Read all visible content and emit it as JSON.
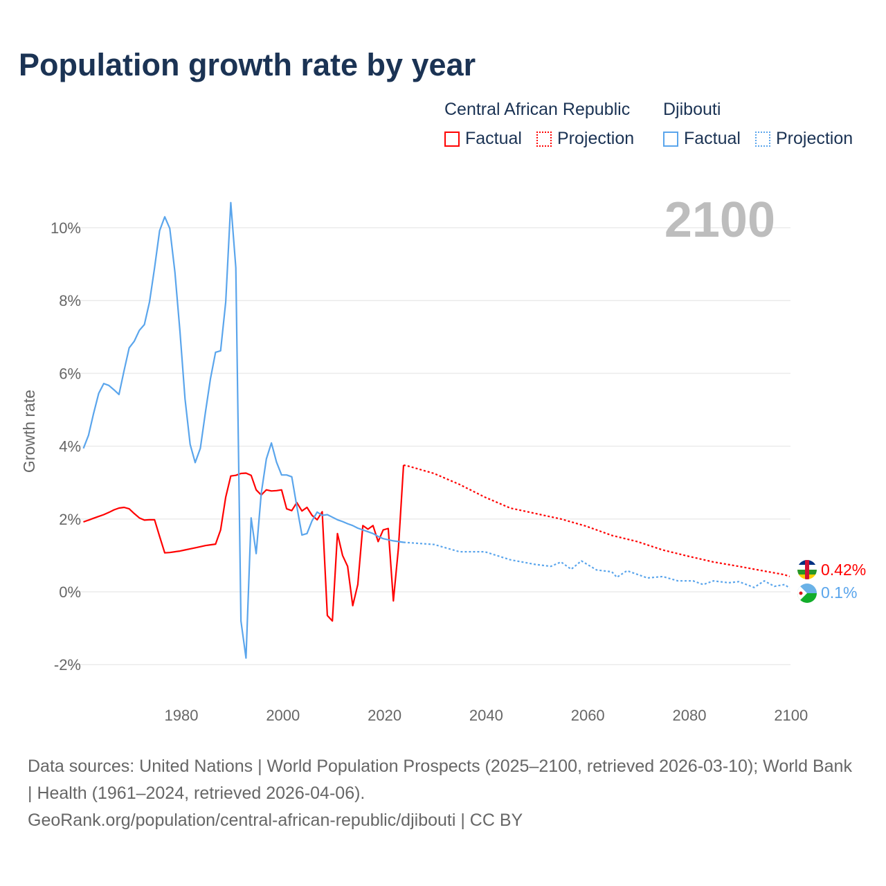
{
  "title": "Population growth rate by year",
  "legend": {
    "groups": [
      {
        "name": "Central African Republic",
        "factual": "Factual",
        "projection": "Projection",
        "color": "#ff0000"
      },
      {
        "name": "Djibouti",
        "factual": "Factual",
        "projection": "Projection",
        "color": "#5aa5ec"
      }
    ]
  },
  "year_watermark": "2100",
  "end_labels": {
    "car": "0.42%",
    "djibouti": "0.1%"
  },
  "footer": {
    "line1": "Data sources: United Nations | World Population Prospects (2025–2100, retrieved 2026-03-10); World Bank | Health (1961–2024, retrieved 2026-04-06).",
    "line2": "GeoRank.org/population/central-african-republic/djibouti | CC BY"
  },
  "chart_data": {
    "type": "line",
    "title": "Population growth rate by year",
    "xlabel": "",
    "ylabel": "Growth rate",
    "xlim": [
      1961,
      2100
    ],
    "ylim": [
      -2.8,
      11
    ],
    "x_ticks": [
      1980,
      2000,
      2020,
      2040,
      2060,
      2080,
      2100
    ],
    "x_tick_labels": [
      "1980",
      "2000",
      "2020",
      "2040",
      "2060",
      "2080",
      "2100"
    ],
    "y_ticks": [
      -2,
      0,
      2,
      4,
      6,
      8,
      10
    ],
    "y_tick_labels": [
      "-2%",
      "0%",
      "2%",
      "4%",
      "6%",
      "8%",
      "10%"
    ],
    "grid": true,
    "legend_position": "top-right",
    "series": [
      {
        "name": "Central African Republic – Factual",
        "color": "#ff0000",
        "style": "solid",
        "start_year": 1961,
        "values": [
          1.92,
          1.97,
          2.02,
          2.07,
          2.12,
          2.18,
          2.25,
          2.3,
          2.32,
          2.28,
          2.15,
          2.03,
          1.97,
          1.98,
          1.98,
          1.52,
          1.07,
          1.08,
          1.1,
          1.12,
          1.15,
          1.18,
          1.21,
          1.24,
          1.27,
          1.29,
          1.31,
          1.7,
          2.6,
          3.18,
          3.2,
          3.25,
          3.26,
          3.2,
          2.8,
          2.66,
          2.8,
          2.77,
          2.78,
          2.8,
          2.28,
          2.23,
          2.45,
          2.22,
          2.32,
          2.1,
          1.98,
          2.2,
          -0.65,
          -0.8,
          1.6,
          1.0,
          0.7,
          -0.38,
          0.2,
          1.82,
          1.72,
          1.82,
          1.38,
          1.7,
          1.74,
          -0.25,
          1.2,
          3.48
        ]
      },
      {
        "name": "Central African Republic – Projection",
        "color": "#ff0000",
        "style": "dotted",
        "years": [
          2024,
          2025,
          2030,
          2035,
          2040,
          2045,
          2050,
          2055,
          2060,
          2065,
          2070,
          2075,
          2080,
          2085,
          2090,
          2095,
          2099,
          2100
        ],
        "values": [
          3.48,
          3.45,
          3.25,
          2.95,
          2.6,
          2.3,
          2.15,
          2.0,
          1.8,
          1.55,
          1.38,
          1.15,
          0.98,
          0.82,
          0.7,
          0.57,
          0.47,
          0.42
        ]
      },
      {
        "name": "Djibouti – Factual",
        "color": "#5aa5ec",
        "style": "solid",
        "start_year": 1961,
        "values": [
          3.94,
          4.3,
          4.9,
          5.45,
          5.72,
          5.67,
          5.55,
          5.42,
          6.08,
          6.7,
          6.88,
          7.18,
          7.34,
          7.96,
          8.9,
          9.92,
          10.3,
          9.98,
          8.78,
          7.15,
          5.3,
          4.05,
          3.55,
          3.94,
          4.92,
          5.85,
          6.58,
          6.62,
          7.96,
          10.69,
          8.9,
          -0.8,
          -1.82,
          2.03,
          1.05,
          2.7,
          3.65,
          4.09,
          3.56,
          3.21,
          3.21,
          3.16,
          2.35,
          1.56,
          1.6,
          1.95,
          2.19,
          2.1,
          2.12,
          2.05,
          1.98,
          1.93,
          1.87,
          1.82,
          1.75,
          1.7,
          1.65,
          1.6,
          1.52,
          1.46,
          1.43,
          1.4,
          1.38,
          1.36
        ]
      },
      {
        "name": "Djibouti – Projection",
        "color": "#5aa5ec",
        "style": "dotted",
        "years": [
          2024,
          2025,
          2030,
          2035,
          2040,
          2045,
          2050,
          2053,
          2055,
          2057,
          2059,
          2062,
          2065,
          2066,
          2068,
          2072,
          2075,
          2078,
          2081,
          2083,
          2085,
          2088,
          2090,
          2093,
          2095,
          2097,
          2099,
          2100
        ],
        "values": [
          1.36,
          1.35,
          1.3,
          1.1,
          1.1,
          0.88,
          0.75,
          0.7,
          0.82,
          0.62,
          0.85,
          0.6,
          0.55,
          0.4,
          0.58,
          0.38,
          0.42,
          0.3,
          0.3,
          0.2,
          0.3,
          0.25,
          0.28,
          0.12,
          0.3,
          0.15,
          0.2,
          0.1
        ]
      }
    ]
  }
}
